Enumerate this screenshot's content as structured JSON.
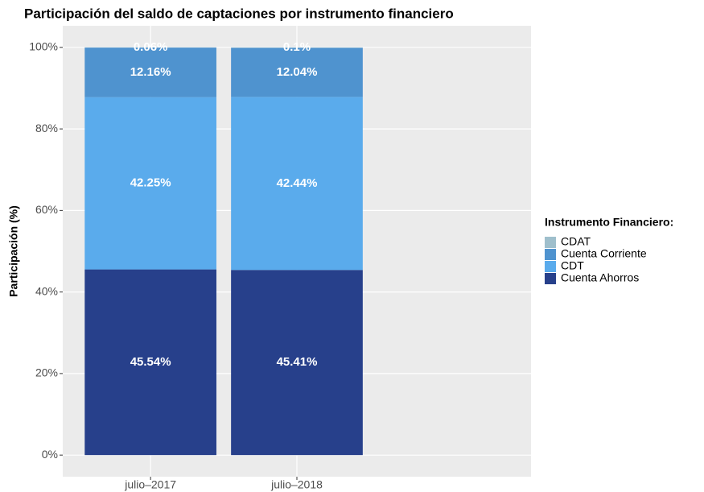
{
  "chart_data": {
    "type": "stacked_bar",
    "title": "Participación del saldo de captaciones por instrumento financiero",
    "y_label": "Participación (%)",
    "legend_title": "Instrumento Financiero:",
    "legend_position": "right",
    "grid": true,
    "categories": [
      "julio–2017",
      "julio–2018"
    ],
    "series": [
      {
        "name": "Cuenta Ahorros",
        "color": "#27408b",
        "values": [
          45.54,
          45.41
        ],
        "value_labels": [
          "45.54%",
          "45.41%"
        ]
      },
      {
        "name": "CDT",
        "color": "#5aabec",
        "values": [
          42.25,
          42.44
        ],
        "value_labels": [
          "42.25%",
          "42.44%"
        ]
      },
      {
        "name": "Cuenta Corriente",
        "color": "#4f93cf",
        "values": [
          12.16,
          12.04
        ],
        "value_labels": [
          "12.16%",
          "12.04%"
        ]
      },
      {
        "name": "CDAT",
        "color": "#9fbfcc",
        "values": [
          0.06,
          0.1
        ],
        "value_labels": [
          "0.06%",
          "0.1%"
        ]
      }
    ],
    "ylim": [
      -5.3,
      105.3
    ],
    "yticks": [
      {
        "value": 0,
        "label": "0%"
      },
      {
        "value": 20,
        "label": "20%"
      },
      {
        "value": 40,
        "label": "40%"
      },
      {
        "value": 60,
        "label": "60%"
      },
      {
        "value": 80,
        "label": "80%"
      },
      {
        "value": 100,
        "label": "100%"
      }
    ]
  }
}
